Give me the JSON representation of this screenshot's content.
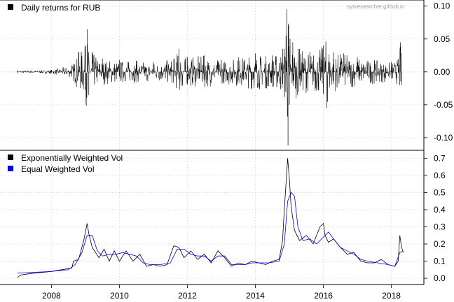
{
  "watermark": "sysresearcher.github.io",
  "chart_data": [
    {
      "type": "line",
      "panel": "top",
      "legend_position": "top-left",
      "series": [
        {
          "name": "Daily returns for RUB",
          "color": "#000000",
          "x": [
            2007.0,
            2008.0,
            2008.6,
            2008.8,
            2009.0,
            2009.05,
            2009.1,
            2009.2,
            2009.5,
            2010.0,
            2010.5,
            2011.0,
            2011.6,
            2011.75,
            2012.0,
            2012.5,
            2013.0,
            2013.5,
            2014.0,
            2014.5,
            2014.8,
            2014.9,
            2014.93,
            2014.96,
            2014.98,
            2015.0,
            2015.02,
            2015.1,
            2015.3,
            2015.6,
            2016.0,
            2016.1,
            2016.3,
            2016.6,
            2017.0,
            2017.5,
            2018.0,
            2018.2,
            2018.27,
            2018.3
          ],
          "y": [
            0.002,
            0.003,
            0.01,
            0.03,
            0.04,
            0.065,
            -0.035,
            0.03,
            0.02,
            0.018,
            0.017,
            0.015,
            0.02,
            0.035,
            0.022,
            0.025,
            0.018,
            0.022,
            0.028,
            0.025,
            0.035,
            0.055,
            0.095,
            -0.112,
            0.07,
            -0.05,
            0.05,
            0.045,
            0.035,
            0.03,
            0.04,
            -0.055,
            0.03,
            0.028,
            0.022,
            0.018,
            0.015,
            0.02,
            0.045,
            -0.02
          ],
          "note_envelope": false
        }
      ],
      "ylim": [
        -0.115,
        0.105
      ],
      "yticks": [
        "0.10",
        "0.05",
        "0.00",
        "-0.05",
        "-0.10"
      ],
      "ytick_values": [
        0.1,
        0.05,
        0.0,
        -0.05,
        -0.1
      ],
      "xlim": [
        2006.9,
        2018.75
      ],
      "grid": true
    },
    {
      "type": "line",
      "panel": "bottom",
      "legend_position": "top-left",
      "series": [
        {
          "name": "Exponentially Weighted Vol",
          "color": "#000000",
          "x": [
            2007.0,
            2007.1,
            2007.5,
            2008.0,
            2008.3,
            2008.6,
            2008.65,
            2008.8,
            2008.95,
            2009.05,
            2009.1,
            2009.2,
            2009.3,
            2009.4,
            2009.55,
            2009.7,
            2009.85,
            2010.0,
            2010.2,
            2010.4,
            2010.6,
            2010.8,
            2011.0,
            2011.2,
            2011.4,
            2011.6,
            2011.75,
            2011.9,
            2012.1,
            2012.3,
            2012.5,
            2012.7,
            2012.9,
            2013.1,
            2013.3,
            2013.5,
            2013.7,
            2013.9,
            2014.1,
            2014.3,
            2014.5,
            2014.7,
            2014.8,
            2014.85,
            2014.9,
            2014.95,
            2015.0,
            2015.05,
            2015.15,
            2015.3,
            2015.5,
            2015.7,
            2015.9,
            2016.0,
            2016.05,
            2016.15,
            2016.3,
            2016.5,
            2016.7,
            2016.9,
            2017.1,
            2017.3,
            2017.5,
            2017.7,
            2017.9,
            2018.1,
            2018.2,
            2018.25,
            2018.3,
            2018.35
          ],
          "y": [
            0.005,
            0.02,
            0.03,
            0.04,
            0.05,
            0.06,
            0.1,
            0.11,
            0.22,
            0.32,
            0.26,
            0.18,
            0.15,
            0.12,
            0.17,
            0.1,
            0.16,
            0.1,
            0.16,
            0.1,
            0.14,
            0.07,
            0.08,
            0.07,
            0.08,
            0.19,
            0.18,
            0.12,
            0.16,
            0.11,
            0.14,
            0.09,
            0.16,
            0.12,
            0.07,
            0.09,
            0.08,
            0.1,
            0.09,
            0.08,
            0.1,
            0.11,
            0.22,
            0.4,
            0.55,
            0.7,
            0.58,
            0.42,
            0.28,
            0.22,
            0.25,
            0.2,
            0.3,
            0.32,
            0.25,
            0.21,
            0.23,
            0.18,
            0.14,
            0.15,
            0.1,
            0.09,
            0.09,
            0.11,
            0.08,
            0.07,
            0.1,
            0.25,
            0.18,
            0.15
          ],
          "note_envelope": false
        },
        {
          "name": "Equal Weighted Vol",
          "color": "#0000ff",
          "x": [
            2007.0,
            2007.5,
            2008.0,
            2008.5,
            2008.7,
            2008.9,
            2009.05,
            2009.2,
            2009.35,
            2009.5,
            2009.7,
            2009.9,
            2010.1,
            2010.3,
            2010.5,
            2010.7,
            2010.9,
            2011.2,
            2011.5,
            2011.7,
            2011.9,
            2012.1,
            2012.3,
            2012.5,
            2012.7,
            2012.9,
            2013.1,
            2013.3,
            2013.5,
            2013.7,
            2013.9,
            2014.1,
            2014.4,
            2014.7,
            2014.85,
            2014.95,
            2015.05,
            2015.15,
            2015.25,
            2015.4,
            2015.6,
            2015.8,
            2016.0,
            2016.15,
            2016.3,
            2016.5,
            2016.7,
            2016.9,
            2017.1,
            2017.3,
            2017.6,
            2017.9,
            2018.1,
            2018.25,
            2018.35
          ],
          "y": [
            0.03,
            0.035,
            0.04,
            0.05,
            0.08,
            0.15,
            0.25,
            0.25,
            0.16,
            0.13,
            0.14,
            0.14,
            0.15,
            0.14,
            0.13,
            0.09,
            0.08,
            0.08,
            0.09,
            0.17,
            0.17,
            0.14,
            0.13,
            0.13,
            0.1,
            0.13,
            0.13,
            0.08,
            0.08,
            0.08,
            0.09,
            0.09,
            0.09,
            0.1,
            0.2,
            0.45,
            0.5,
            0.48,
            0.3,
            0.22,
            0.23,
            0.2,
            0.24,
            0.27,
            0.23,
            0.18,
            0.16,
            0.14,
            0.11,
            0.1,
            0.09,
            0.08,
            0.07,
            0.15,
            0.16
          ],
          "note_envelope": false
        }
      ],
      "ylim": [
        -0.02,
        0.73
      ],
      "yticks": [
        "0.7",
        "0.6",
        "0.5",
        "0.4",
        "0.3",
        "0.2",
        "0.1",
        "0.0"
      ],
      "ytick_values": [
        0.7,
        0.6,
        0.5,
        0.4,
        0.3,
        0.2,
        0.1,
        0.0
      ],
      "xlim": [
        2006.9,
        2018.75
      ],
      "xticks": [
        "2008",
        "2010",
        "2012",
        "2014",
        "2016",
        "2018"
      ],
      "xtick_values": [
        2008,
        2010,
        2012,
        2014,
        2016,
        2018
      ],
      "grid": true
    }
  ]
}
